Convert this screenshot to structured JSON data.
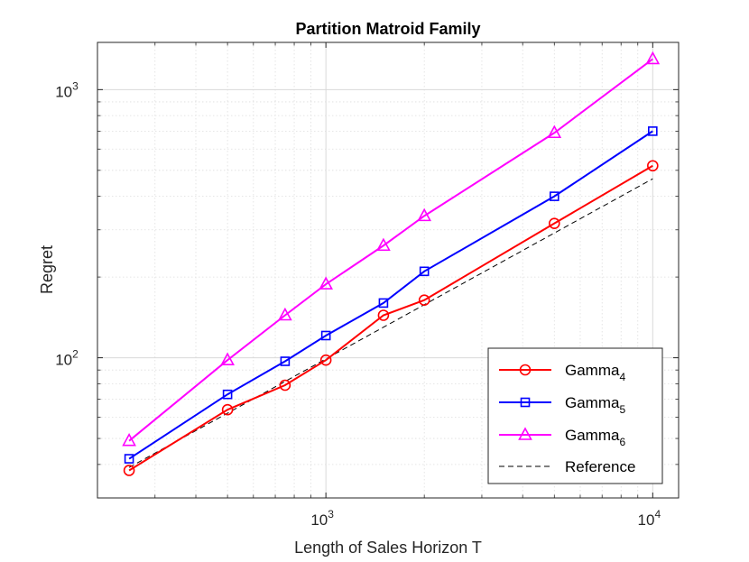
{
  "chart_data": {
    "type": "line",
    "title": "Partition Matroid Family",
    "xlabel": "Length of Sales Horizon T",
    "ylabel": "Regret",
    "xscale": "log",
    "yscale": "log",
    "xlim": [
      200,
      12000
    ],
    "ylim": [
      30,
      1500
    ],
    "grid": true,
    "legend_location": "bottom-right",
    "x_ticks": [
      {
        "value": 1000,
        "base": "10",
        "exp": "3"
      },
      {
        "value": 10000,
        "base": "10",
        "exp": "4"
      }
    ],
    "y_ticks": [
      {
        "value": 100,
        "base": "10",
        "exp": "2"
      },
      {
        "value": 1000,
        "base": "10",
        "exp": "3"
      }
    ],
    "x": [
      250,
      500,
      750,
      1000,
      1500,
      2000,
      5000,
      10000
    ],
    "series": [
      {
        "name": "Gamma",
        "sub": "4",
        "color": "#ff0000",
        "marker": "circle",
        "dashed": false,
        "values": [
          38,
          64,
          79,
          98,
          144,
          164,
          317,
          520
        ]
      },
      {
        "name": "Gamma",
        "sub": "5",
        "color": "#0000ff",
        "marker": "square",
        "dashed": false,
        "values": [
          42,
          73,
          97,
          121,
          160,
          210,
          400,
          700
        ]
      },
      {
        "name": "Gamma",
        "sub": "6",
        "color": "#ff00ff",
        "marker": "triangle",
        "dashed": false,
        "values": [
          49,
          98,
          144,
          188,
          262,
          338,
          690,
          1300
        ]
      }
    ],
    "reference": {
      "name": "Reference",
      "color": "#000000",
      "dashed": true,
      "x": [
        250,
        10000
      ],
      "values": [
        39,
        465
      ]
    }
  }
}
